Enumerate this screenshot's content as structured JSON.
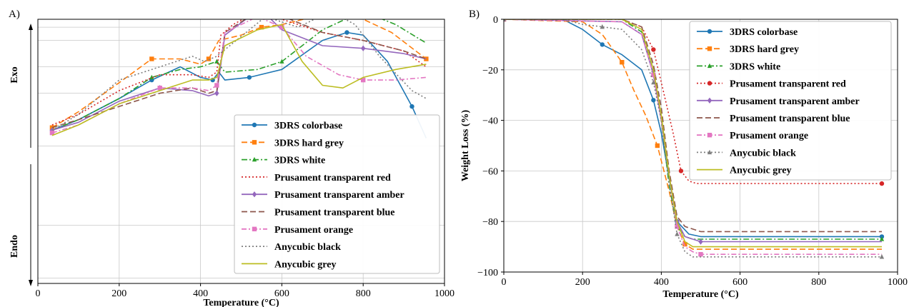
{
  "chart_data": [
    {
      "panel_label": "A)",
      "type": "line",
      "xlabel": "Temperature (°C)",
      "ylabel": "",
      "side_labels": {
        "top": "Exo",
        "bottom": "Endo"
      },
      "xlim": [
        0,
        1000
      ],
      "ylim": [
        0,
        100
      ],
      "xticks": [
        0,
        200,
        400,
        600,
        800,
        1000
      ],
      "y_grid_positions": [
        2,
        22,
        52,
        72,
        82,
        92,
        97
      ],
      "grid": true,
      "legend_position": "lower-right",
      "series": [
        {
          "name": "3DRS colorbase",
          "color": "#1f77b4",
          "dash": "",
          "marker": "circle",
          "x": [
            35,
            100,
            200,
            280,
            350,
            400,
            430,
            445,
            460,
            520,
            600,
            700,
            760,
            800,
            860,
            920,
            955
          ],
          "y": [
            58,
            62,
            70,
            77,
            82,
            78,
            77,
            80,
            77,
            78,
            81,
            92,
            95,
            94,
            84,
            67,
            55
          ]
        },
        {
          "name": "3DRS hard grey",
          "color": "#ff7f0e",
          "dash": "8 4",
          "marker": "square",
          "x": [
            35,
            100,
            200,
            280,
            350,
            400,
            420,
            445,
            500,
            550,
            600,
            680,
            720,
            800,
            870,
            955
          ],
          "y": [
            59,
            65,
            76,
            85,
            85,
            83,
            85,
            92,
            94,
            97,
            98,
            101,
            102,
            100,
            95,
            85
          ]
        },
        {
          "name": "3DRS white",
          "color": "#2ca02c",
          "dash": "8 3 2 3",
          "marker": "triangle",
          "x": [
            35,
            100,
            200,
            280,
            350,
            400,
            440,
            460,
            540,
            600,
            700,
            770,
            800,
            880,
            955
          ],
          "y": [
            58,
            62,
            70,
            78,
            81,
            82,
            84,
            80,
            81,
            84,
            96,
            101,
            103,
            98,
            91
          ]
        },
        {
          "name": "Prusament transparent red",
          "color": "#d62728",
          "dash": "2 3",
          "marker": "",
          "x": [
            35,
            100,
            200,
            300,
            380,
            420,
            440,
            450,
            480,
            540,
            600,
            700,
            800,
            900,
            955
          ],
          "y": [
            60,
            64,
            73,
            79,
            79,
            78,
            80,
            94,
            98,
            103,
            100,
            95,
            92,
            88,
            82
          ]
        },
        {
          "name": "Prusament transparent amber",
          "color": "#9467bd",
          "dash": "",
          "marker": "diamond",
          "x": [
            35,
            100,
            200,
            300,
            380,
            420,
            440,
            460,
            520,
            560,
            600,
            700,
            800,
            900,
            955
          ],
          "y": [
            58,
            61,
            69,
            74,
            73,
            71,
            72,
            94,
            101,
            102,
            96,
            90,
            89,
            87,
            85
          ]
        },
        {
          "name": "Prusament transparent blue",
          "color": "#8c564b",
          "dash": "8 4",
          "marker": "",
          "x": [
            35,
            100,
            200,
            300,
            380,
            420,
            440,
            460,
            520,
            560,
            620,
            700,
            800,
            900,
            955
          ],
          "y": [
            59,
            62,
            67,
            72,
            74,
            72,
            73,
            95,
            101,
            103,
            100,
            95,
            92,
            88,
            85
          ]
        },
        {
          "name": "Prusament orange",
          "color": "#e377c2",
          "dash": "7 3 2 3",
          "marker": "square",
          "x": [
            35,
            100,
            200,
            300,
            380,
            420,
            440,
            460,
            540,
            600,
            660,
            740,
            800,
            880,
            955
          ],
          "y": [
            57,
            60,
            68,
            74,
            74,
            73,
            75,
            95,
            101,
            97,
            86,
            79,
            77,
            77,
            78
          ]
        },
        {
          "name": "Anycubic black",
          "color": "#7f7f7f",
          "dash": "2 3",
          "marker": "",
          "x": [
            35,
            100,
            200,
            300,
            380,
            410,
            440,
            480,
            560,
            640,
            720,
            780,
            840,
            920,
            955
          ],
          "y": [
            58,
            64,
            77,
            82,
            86,
            84,
            86,
            91,
            101,
            97,
            103,
            98,
            86,
            73,
            70
          ]
        },
        {
          "name": "Anycubic grey",
          "color": "#bcbd22",
          "dash": "",
          "marker": "",
          "x": [
            35,
            100,
            200,
            300,
            380,
            420,
            440,
            460,
            540,
            600,
            650,
            700,
            750,
            800,
            880,
            955
          ],
          "y": [
            56,
            60,
            68,
            73,
            77,
            77,
            78,
            90,
            96,
            98,
            84,
            75,
            74,
            78,
            81,
            83
          ]
        }
      ]
    },
    {
      "panel_label": "B)",
      "type": "line",
      "xlabel": "Temperature (°C)",
      "ylabel": "Weight Loss (%)",
      "xlim": [
        0,
        1000
      ],
      "ylim": [
        -100,
        0
      ],
      "xticks": [
        0,
        200,
        400,
        600,
        800,
        1000
      ],
      "yticks": [
        0,
        -20,
        -40,
        -60,
        -80,
        -100
      ],
      "grid": true,
      "legend_position": "upper-right",
      "series": [
        {
          "name": "3DRS colorbase",
          "color": "#1f77b4",
          "dash": "",
          "marker": "circle",
          "x": [
            0,
            150,
            200,
            250,
            300,
            350,
            380,
            400,
            420,
            440,
            470,
            500,
            960
          ],
          "y": [
            0,
            0,
            -4,
            -10,
            -14,
            -20,
            -32,
            -45,
            -63,
            -80,
            -85,
            -86,
            -86
          ]
        },
        {
          "name": "3DRS hard grey",
          "color": "#ff7f0e",
          "dash": "8 4",
          "marker": "square",
          "x": [
            0,
            200,
            250,
            300,
            330,
            360,
            390,
            420,
            440,
            460,
            480,
            960
          ],
          "y": [
            0,
            -1,
            -6,
            -17,
            -28,
            -38,
            -50,
            -68,
            -82,
            -89,
            -91,
            -91
          ]
        },
        {
          "name": "3DRS white",
          "color": "#2ca02c",
          "dash": "8 3 2 3",
          "marker": "triangle",
          "x": [
            0,
            300,
            350,
            380,
            400,
            420,
            440,
            460,
            480,
            960
          ],
          "y": [
            0,
            0,
            -5,
            -20,
            -40,
            -66,
            -82,
            -86,
            -87,
            -87
          ]
        },
        {
          "name": "Prusament transparent red",
          "color": "#d62728",
          "dash": "2 3",
          "marker": "circle",
          "x": [
            0,
            300,
            350,
            380,
            400,
            430,
            450,
            470,
            490,
            960
          ],
          "y": [
            0,
            0,
            -3,
            -12,
            -25,
            -45,
            -60,
            -64,
            -65,
            -65
          ]
        },
        {
          "name": "Prusament transparent amber",
          "color": "#9467bd",
          "dash": "",
          "marker": "diamond",
          "x": [
            0,
            300,
            350,
            380,
            400,
            420,
            440,
            460,
            480,
            500,
            960
          ],
          "y": [
            0,
            -1,
            -6,
            -22,
            -40,
            -62,
            -80,
            -86,
            -87,
            -88,
            -88
          ]
        },
        {
          "name": "Prusament transparent blue",
          "color": "#8c564b",
          "dash": "8 4",
          "marker": "",
          "x": [
            0,
            300,
            350,
            380,
            400,
            420,
            440,
            460,
            500,
            960
          ],
          "y": [
            0,
            0,
            -3,
            -18,
            -35,
            -60,
            -78,
            -82,
            -84,
            -84
          ]
        },
        {
          "name": "Prusament orange",
          "color": "#e377c2",
          "dash": "7 3 2 3",
          "marker": "square",
          "x": [
            0,
            300,
            350,
            380,
            400,
            420,
            440,
            460,
            480,
            500,
            960
          ],
          "y": [
            0,
            -1,
            -6,
            -22,
            -40,
            -62,
            -82,
            -90,
            -92,
            -93,
            -93
          ]
        },
        {
          "name": "Anycubic black",
          "color": "#7f7f7f",
          "dash": "2 3",
          "marker": "triangle",
          "x": [
            0,
            150,
            200,
            250,
            300,
            350,
            380,
            400,
            420,
            440,
            460,
            480,
            960
          ],
          "y": [
            0,
            0,
            -2,
            -3,
            -4,
            -12,
            -25,
            -40,
            -65,
            -85,
            -92,
            -94,
            -94
          ]
        },
        {
          "name": "Anycubic grey",
          "color": "#bcbd22",
          "dash": "",
          "marker": "",
          "x": [
            0,
            300,
            350,
            380,
            400,
            420,
            440,
            460,
            480,
            960
          ],
          "y": [
            0,
            0,
            -4,
            -20,
            -38,
            -62,
            -80,
            -88,
            -90,
            -90
          ]
        }
      ]
    }
  ]
}
